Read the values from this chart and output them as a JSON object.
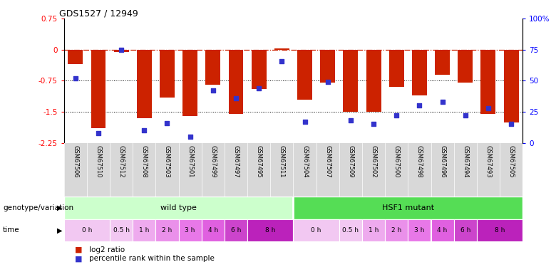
{
  "title": "GDS1527 / 12949",
  "samples": [
    "GSM67506",
    "GSM67510",
    "GSM67512",
    "GSM67508",
    "GSM67503",
    "GSM67501",
    "GSM67499",
    "GSM67497",
    "GSM67495",
    "GSM67511",
    "GSM67504",
    "GSM67507",
    "GSM67509",
    "GSM67502",
    "GSM67500",
    "GSM67498",
    "GSM67496",
    "GSM67494",
    "GSM67493",
    "GSM67505"
  ],
  "log2_ratio": [
    -0.35,
    -1.9,
    -0.05,
    -1.65,
    -1.15,
    -1.6,
    -0.85,
    -1.55,
    -0.95,
    0.03,
    -1.2,
    -0.8,
    -1.5,
    -1.5,
    -0.9,
    -1.1,
    -0.6,
    -0.8,
    -1.55,
    -1.75
  ],
  "percentile": [
    52,
    8,
    75,
    10,
    16,
    5,
    42,
    36,
    44,
    66,
    17,
    49,
    18,
    15,
    22,
    30,
    33,
    22,
    28,
    15
  ],
  "ylim_left": [
    -2.25,
    0.75
  ],
  "ylim_right": [
    0,
    100
  ],
  "yticks_left": [
    -2.25,
    -1.5,
    -0.75,
    0,
    0.75
  ],
  "yticks_right": [
    0,
    25,
    50,
    75,
    100
  ],
  "ytick_labels_right": [
    "0",
    "25",
    "50",
    "75",
    "100%"
  ],
  "dotted_lines": [
    -0.75,
    -1.5
  ],
  "bar_color": "#cc2200",
  "dot_color": "#3333cc",
  "wild_type_color": "#ccffcc",
  "hsf1_mutant_color": "#55dd55",
  "time_colors": [
    "#f2c8f2",
    "#f2c8f2",
    "#eeaaee",
    "#ea90ea",
    "#e878e8",
    "#e060e0",
    "#cc44cc",
    "#bb22bb"
  ],
  "xlabel_geno": "genotype/variation",
  "xlabel_time": "time",
  "legend_bar": "log2 ratio",
  "legend_dot": "percentile rank within the sample",
  "tick_area_color": "#d8d8d8",
  "time_blocks": [
    [
      "0 h",
      0,
      1,
      0
    ],
    [
      "0.5 h",
      2,
      2,
      1
    ],
    [
      "1 h",
      3,
      3,
      2
    ],
    [
      "2 h",
      4,
      4,
      3
    ],
    [
      "3 h",
      5,
      5,
      4
    ],
    [
      "4 h",
      6,
      6,
      5
    ],
    [
      "6 h",
      7,
      7,
      6
    ],
    [
      "8 h",
      8,
      9,
      7
    ],
    [
      "0 h",
      10,
      11,
      0
    ],
    [
      "0.5 h",
      12,
      12,
      1
    ],
    [
      "1 h",
      13,
      13,
      2
    ],
    [
      "2 h",
      14,
      14,
      3
    ],
    [
      "3 h",
      15,
      15,
      4
    ],
    [
      "4 h",
      16,
      16,
      5
    ],
    [
      "6 h",
      17,
      17,
      6
    ],
    [
      "8 h",
      18,
      19,
      7
    ]
  ]
}
